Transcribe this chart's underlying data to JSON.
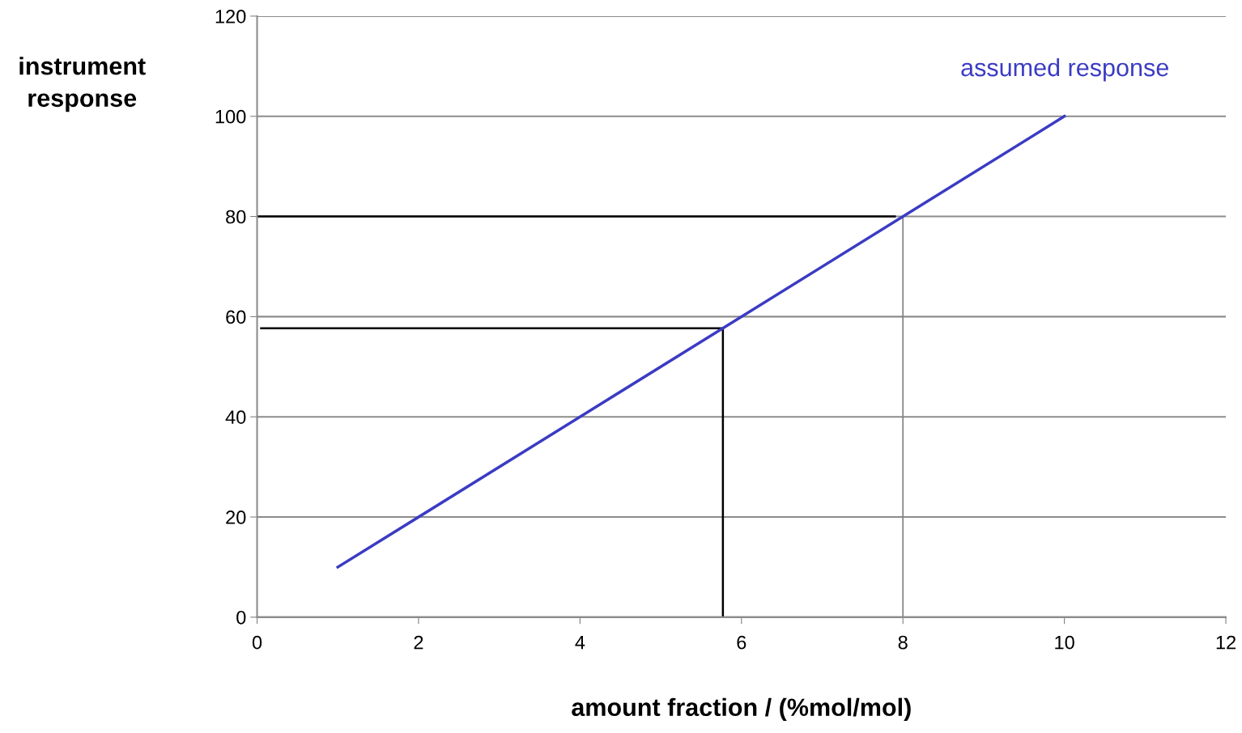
{
  "chart_data": {
    "type": "line",
    "xlabel": "amount fraction / (%mol/mol)",
    "ylabel": "instrument\nresponse",
    "xlim": [
      0,
      12
    ],
    "xticks": [
      0,
      2,
      4,
      6,
      8,
      10,
      12
    ],
    "ylim": [
      0,
      120
    ],
    "yticks": [
      0,
      20,
      40,
      60,
      80,
      100,
      120
    ],
    "grid": "y",
    "series": [
      {
        "name": "assumed response",
        "color": "#3b3bc4",
        "x": [
          1,
          10
        ],
        "values": [
          10,
          100
        ]
      },
      {
        "color": "#000000",
        "x": [
          7.9,
          0
        ],
        "values": [
          80,
          80
        ]
      },
      {
        "color": "#808080",
        "x": [
          8,
          8
        ],
        "values": [
          80,
          0
        ]
      },
      {
        "color": "#000000",
        "x": [
          0.05,
          5.77
        ],
        "values": [
          57.7,
          57.7
        ]
      },
      {
        "color": "#000000",
        "x": [
          5.77,
          5.77
        ],
        "values": [
          57.7,
          0
        ]
      }
    ]
  }
}
